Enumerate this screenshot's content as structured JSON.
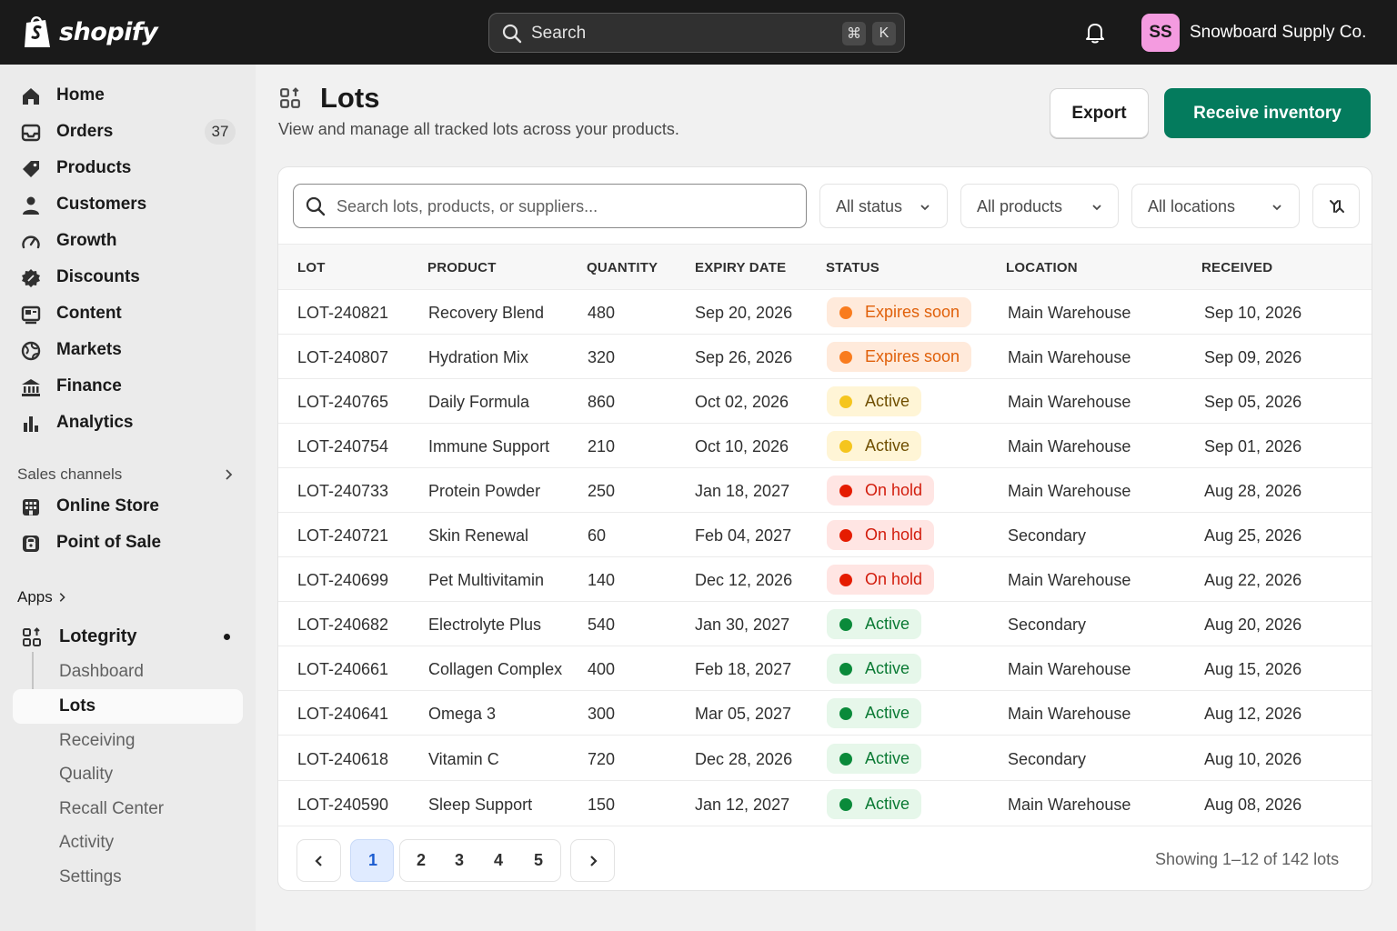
{
  "topbar": {
    "brand": "shopify",
    "search_label": "Search",
    "shortcut_mod": "⌘",
    "shortcut_key": "K",
    "avatar_initials": "SS",
    "store_name": "Snowboard Supply Co."
  },
  "sidebar": {
    "items": [
      {
        "label": "Home",
        "icon": "home-icon"
      },
      {
        "label": "Orders",
        "icon": "orders-icon",
        "count": "37"
      },
      {
        "label": "Products",
        "icon": "tag-icon"
      },
      {
        "label": "Customers",
        "icon": "person-icon"
      },
      {
        "label": "Growth",
        "icon": "gauge-icon"
      },
      {
        "label": "Discounts",
        "icon": "discount-icon"
      },
      {
        "label": "Content",
        "icon": "content-icon"
      },
      {
        "label": "Markets",
        "icon": "globe-icon"
      },
      {
        "label": "Finance",
        "icon": "bank-icon"
      },
      {
        "label": "Analytics",
        "icon": "bar-chart-icon"
      }
    ],
    "sales_channels_label": "Sales channels",
    "channels": [
      {
        "label": "Online Store",
        "icon": "store-icon"
      },
      {
        "label": "Point of Sale",
        "icon": "pos-icon"
      }
    ],
    "apps_label": "Apps",
    "app": {
      "label": "Lotegrity",
      "icon": "app-grid-icon"
    },
    "app_pages": [
      "Dashboard",
      "Lots",
      "Receiving",
      "Quality",
      "Recall Center",
      "Activity",
      "Settings"
    ]
  },
  "page": {
    "title": "Lots",
    "subtitle": "View and manage all tracked lots across your products.",
    "export_label": "Export",
    "primary_label": "Receive inventory"
  },
  "filters": {
    "search_placeholder": "Search lots, products, or suppliers...",
    "status": "All status",
    "products": "All products",
    "locations": "All locations"
  },
  "table": {
    "columns": [
      "LOT",
      "PRODUCT",
      "QUANTITY",
      "EXPIRY DATE",
      "STATUS",
      "LOCATION",
      "RECEIVED"
    ],
    "rows": [
      {
        "lot": "LOT-240821",
        "product": "Recovery Blend",
        "quantity": "480",
        "expiry": "Sep 20, 2026",
        "status": "Expires soon",
        "status_kind": "expiring",
        "location": "Main Warehouse",
        "received": "Sep 10, 2026"
      },
      {
        "lot": "LOT-240807",
        "product": "Hydration Mix",
        "quantity": "320",
        "expiry": "Sep 26, 2026",
        "status": "Expires soon",
        "status_kind": "expiring",
        "location": "Main Warehouse",
        "received": "Sep 09, 2026"
      },
      {
        "lot": "LOT-240765",
        "product": "Daily Formula",
        "quantity": "860",
        "expiry": "Oct 02, 2026",
        "status": "Active",
        "status_kind": "warning",
        "location": "Main Warehouse",
        "received": "Sep 05, 2026"
      },
      {
        "lot": "LOT-240754",
        "product": "Immune Support",
        "quantity": "210",
        "expiry": "Oct 10, 2026",
        "status": "Active",
        "status_kind": "warning",
        "location": "Main Warehouse",
        "received": "Sep 01, 2026"
      },
      {
        "lot": "LOT-240733",
        "product": "Protein Powder",
        "quantity": "250",
        "expiry": "Jan 18, 2027",
        "status": "On hold",
        "status_kind": "hold",
        "location": "Main Warehouse",
        "received": "Aug 28, 2026"
      },
      {
        "lot": "LOT-240721",
        "product": "Skin Renewal",
        "quantity": "60",
        "expiry": "Feb 04, 2027",
        "status": "On hold",
        "status_kind": "hold",
        "location": "Secondary",
        "received": "Aug 25, 2026"
      },
      {
        "lot": "LOT-240699",
        "product": "Pet Multivitamin",
        "quantity": "140",
        "expiry": "Dec 12, 2026",
        "status": "On hold",
        "status_kind": "hold",
        "location": "Main Warehouse",
        "received": "Aug 22, 2026"
      },
      {
        "lot": "LOT-240682",
        "product": "Electrolyte Plus",
        "quantity": "540",
        "expiry": "Jan 30, 2027",
        "status": "Active",
        "status_kind": "active",
        "location": "Secondary",
        "received": "Aug 20, 2026"
      },
      {
        "lot": "LOT-240661",
        "product": "Collagen Complex",
        "quantity": "400",
        "expiry": "Feb 18, 2027",
        "status": "Active",
        "status_kind": "active",
        "location": "Main Warehouse",
        "received": "Aug 15, 2026"
      },
      {
        "lot": "LOT-240641",
        "product": "Omega 3",
        "quantity": "300",
        "expiry": "Mar 05, 2027",
        "status": "Active",
        "status_kind": "active",
        "location": "Main Warehouse",
        "received": "Aug 12, 2026"
      },
      {
        "lot": "LOT-240618",
        "product": "Vitamin C",
        "quantity": "720",
        "expiry": "Dec 28, 2026",
        "status": "Active",
        "status_kind": "active",
        "location": "Secondary",
        "received": "Aug 10, 2026"
      },
      {
        "lot": "LOT-240590",
        "product": "Sleep Support",
        "quantity": "150",
        "expiry": "Jan 12, 2027",
        "status": "Active",
        "status_kind": "active",
        "location": "Main Warehouse",
        "received": "Aug 08, 2026"
      }
    ]
  },
  "status_colors": {
    "expiring": {
      "bg": "#ffeadb",
      "dot": "#f97c1e",
      "text": "#e0600a"
    },
    "warning": {
      "bg": "#fff5d6",
      "dot": "#f5c51e",
      "text": "#6f4e00"
    },
    "hold": {
      "bg": "#ffe5e3",
      "dot": "#e51c00",
      "text": "#d21c0c"
    },
    "active": {
      "bg": "#e6f7ea",
      "dot": "#0a8a3a",
      "text": "#0a7a34"
    }
  },
  "pagination": {
    "pages": [
      "1",
      "2",
      "3",
      "4",
      "5"
    ],
    "current": "1",
    "summary": "Showing 1–12 of 142 lots"
  },
  "colors": {
    "primary": "#047b5d",
    "topbar": "#1a1a1a",
    "avatar": "#f49be0"
  }
}
